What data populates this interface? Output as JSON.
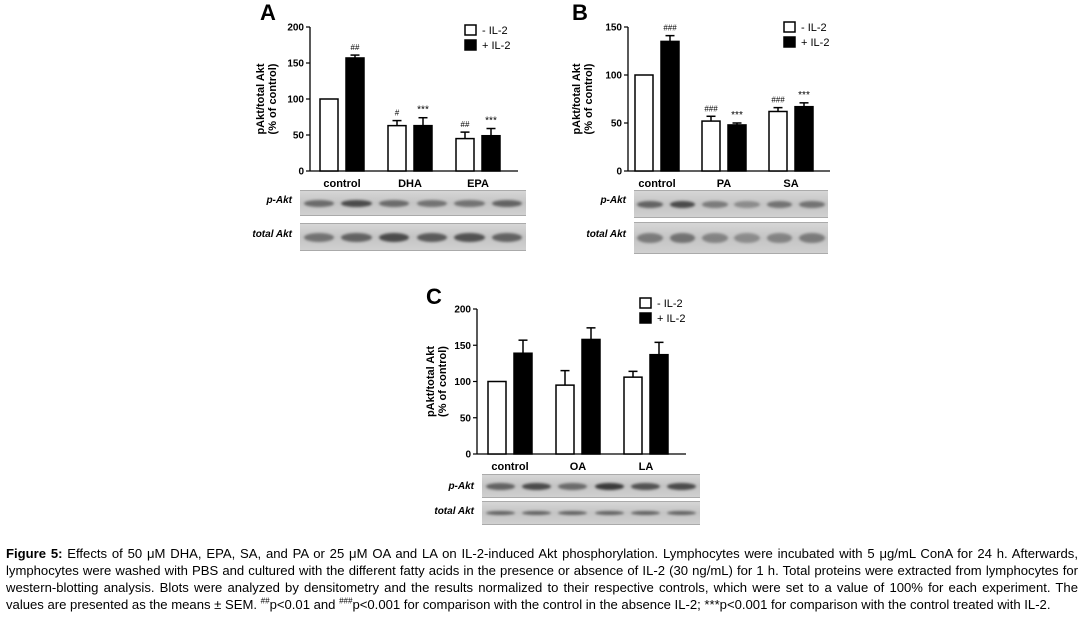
{
  "panels": [
    {
      "letter": "A",
      "ylabel_line1": "pAkt/total Akt",
      "ylabel_line2": "(% of control)",
      "legend": [
        "- IL-2",
        "+ IL-2"
      ],
      "blot_labels": [
        "p-Akt",
        "total Akt"
      ],
      "chart_data": {
        "type": "bar",
        "categories": [
          "control",
          "DHA",
          "EPA"
        ],
        "ylim": [
          0,
          200
        ],
        "yticks": [
          0,
          50,
          100,
          150,
          200
        ],
        "series": [
          {
            "name": "- IL-2",
            "color": "#ffffff",
            "values": [
              100,
              63,
              45
            ],
            "errors": [
              0,
              7,
              9
            ],
            "marks": [
              "",
              "#",
              "##"
            ]
          },
          {
            "name": "+ IL-2",
            "color": "#000000",
            "values": [
              157,
              63,
              49
            ],
            "errors": [
              4,
              11,
              10
            ],
            "marks": [
              "##",
              "***",
              "***"
            ]
          }
        ]
      }
    },
    {
      "letter": "B",
      "ylabel_line1": "pAkt/total Akt",
      "ylabel_line2": "(% of control)",
      "legend": [
        "- IL-2",
        "+ IL-2"
      ],
      "blot_labels": [
        "p-Akt",
        "total Akt"
      ],
      "chart_data": {
        "type": "bar",
        "categories": [
          "control",
          "PA",
          "SA"
        ],
        "ylim": [
          0,
          150
        ],
        "yticks": [
          0,
          50,
          100,
          150
        ],
        "series": [
          {
            "name": "- IL-2",
            "color": "#ffffff",
            "values": [
              100,
              52,
              62
            ],
            "errors": [
              0,
              5,
              4
            ],
            "marks": [
              "",
              "###",
              "###"
            ]
          },
          {
            "name": "+ IL-2",
            "color": "#000000",
            "values": [
              135,
              48,
              67
            ],
            "errors": [
              6,
              2,
              4
            ],
            "marks": [
              "###",
              "***",
              "***"
            ]
          }
        ]
      }
    },
    {
      "letter": "C",
      "ylabel_line1": "pAkt/total Akt",
      "ylabel_line2": "(% of control)",
      "legend": [
        "- IL-2",
        "+ IL-2"
      ],
      "blot_labels": [
        "p-Akt",
        "total Akt"
      ],
      "chart_data": {
        "type": "bar",
        "categories": [
          "control",
          "OA",
          "LA"
        ],
        "ylim": [
          0,
          200
        ],
        "yticks": [
          0,
          50,
          100,
          150,
          200
        ],
        "series": [
          {
            "name": "- IL-2",
            "color": "#ffffff",
            "values": [
              100,
              95,
              106
            ],
            "errors": [
              0,
              20,
              8
            ],
            "marks": [
              "",
              "",
              ""
            ]
          },
          {
            "name": "+ IL-2",
            "color": "#000000",
            "values": [
              139,
              158,
              137
            ],
            "errors": [
              18,
              16,
              17
            ],
            "marks": [
              "",
              "",
              ""
            ]
          }
        ]
      }
    }
  ],
  "caption": {
    "label": "Figure 5:",
    "text1": " Effects of 50 μM DHA, EPA, SA, and PA or 25 μM OA and LA on IL-2-induced Akt phosphorylation. Lymphocytes were incubated with 5 μg/mL ConA for 24 h. Afterwards, lymphocytes were washed with PBS and cultured with the different fatty acids in the presence or absence of IL-2 (30 ng/mL) for 1 h. Total proteins were extracted from lymphocytes for western-blotting analysis. Blots were analyzed by densitometry and the results normalized to their respective controls, which were set to a value of 100% for each experiment. The values are presented as the means ± SEM. ",
    "sup1": "##",
    "text2": "p<0.01 and ",
    "sup2": "###",
    "text3": "p<0.001 for comparison with the control in the absence IL-2; ***p<0.001 for comparison with the control treated with IL-2."
  }
}
